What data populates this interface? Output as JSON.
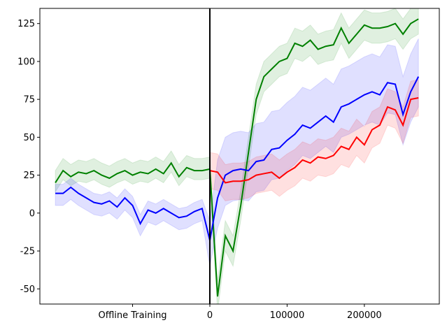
{
  "chart_data": {
    "type": "line",
    "xlim": [
      -220000,
      297000
    ],
    "ylim": [
      -60,
      135
    ],
    "xticks": [
      {
        "value": -100000,
        "label": "Offline Training"
      },
      0,
      100000,
      200000
    ],
    "yticks": [
      -50,
      -25,
      0,
      25,
      50,
      75,
      100,
      125
    ],
    "vline": 0,
    "vline_color": "#000000",
    "series": [
      {
        "color": "#008000",
        "x": [
          -200000,
          -190000,
          -180000,
          -170000,
          -160000,
          -150000,
          -140000,
          -130000,
          -120000,
          -110000,
          -100000,
          -90000,
          -80000,
          -70000,
          -60000,
          -50000,
          -40000,
          -30000,
          -20000,
          -10000,
          0,
          10000,
          20000,
          30000,
          40000,
          50000,
          60000,
          70000,
          80000,
          90000,
          100000,
          110000,
          120000,
          130000,
          140000,
          150000,
          160000,
          170000,
          180000,
          190000,
          200000,
          210000,
          220000,
          230000,
          240000,
          250000,
          260000,
          270000
        ],
        "values": [
          20,
          28,
          24,
          27,
          26,
          28,
          25,
          23,
          26,
          28,
          25,
          27,
          26,
          29,
          26,
          33,
          24,
          30,
          28,
          28,
          29,
          -55,
          -15,
          -25,
          5,
          40,
          75,
          90,
          95,
          100,
          102,
          112,
          110,
          114,
          108,
          110,
          111,
          122,
          112,
          118,
          124,
          122,
          122,
          123,
          125,
          118,
          125,
          128
        ],
        "lower": [
          14,
          22,
          18,
          21,
          20,
          22,
          19,
          17,
          20,
          22,
          19,
          21,
          20,
          23,
          20,
          27,
          18,
          24,
          22,
          22,
          23,
          -65,
          -25,
          -35,
          -5,
          30,
          65,
          80,
          85,
          90,
          92,
          102,
          100,
          104,
          98,
          100,
          101,
          112,
          102,
          108,
          114,
          112,
          112,
          113,
          115,
          108,
          115,
          118
        ],
        "upper": [
          28,
          36,
          32,
          35,
          34,
          36,
          33,
          31,
          34,
          36,
          33,
          35,
          34,
          37,
          34,
          41,
          32,
          38,
          36,
          36,
          37,
          -45,
          -5,
          -15,
          15,
          50,
          85,
          100,
          105,
          110,
          112,
          122,
          120,
          124,
          118,
          120,
          121,
          132,
          122,
          128,
          134,
          132,
          132,
          133,
          135,
          128,
          135,
          138
        ]
      },
      {
        "color": "#0000ff",
        "x": [
          -200000,
          -190000,
          -180000,
          -170000,
          -160000,
          -150000,
          -140000,
          -130000,
          -120000,
          -110000,
          -100000,
          -90000,
          -80000,
          -70000,
          -60000,
          -50000,
          -40000,
          -30000,
          -20000,
          -10000,
          0,
          10000,
          20000,
          30000,
          40000,
          50000,
          60000,
          70000,
          80000,
          90000,
          100000,
          110000,
          120000,
          130000,
          140000,
          150000,
          160000,
          170000,
          180000,
          190000,
          200000,
          210000,
          220000,
          230000,
          240000,
          250000,
          260000,
          270000
        ],
        "values": [
          13,
          13,
          17,
          13,
          10,
          7,
          6,
          8,
          4,
          10,
          5,
          -7,
          2,
          0,
          3,
          0,
          -3,
          -2,
          1,
          3,
          -18,
          10,
          25,
          28,
          29,
          28,
          34,
          35,
          42,
          43,
          48,
          52,
          58,
          56,
          60,
          64,
          60,
          70,
          72,
          75,
          78,
          80,
          78,
          86,
          85,
          65,
          80,
          90
        ],
        "lower": [
          5,
          5,
          9,
          5,
          2,
          -1,
          -2,
          0,
          -4,
          2,
          -3,
          -15,
          -6,
          -8,
          -5,
          -8,
          -11,
          -10,
          -7,
          -5,
          -35,
          -10,
          5,
          8,
          9,
          8,
          14,
          15,
          22,
          23,
          28,
          32,
          38,
          36,
          40,
          44,
          40,
          50,
          52,
          55,
          58,
          60,
          58,
          66,
          65,
          45,
          60,
          70
        ],
        "upper": [
          19,
          19,
          23,
          19,
          16,
          13,
          12,
          14,
          10,
          16,
          11,
          -1,
          8,
          6,
          9,
          6,
          3,
          4,
          7,
          9,
          -5,
          35,
          50,
          53,
          54,
          53,
          59,
          60,
          67,
          68,
          73,
          77,
          83,
          81,
          85,
          89,
          85,
          95,
          97,
          100,
          103,
          105,
          103,
          111,
          110,
          90,
          105,
          115
        ]
      },
      {
        "color": "#ff0000",
        "x": [
          0,
          10000,
          20000,
          30000,
          40000,
          50000,
          60000,
          70000,
          80000,
          90000,
          100000,
          110000,
          120000,
          130000,
          140000,
          150000,
          160000,
          170000,
          180000,
          190000,
          200000,
          210000,
          220000,
          230000,
          240000,
          250000,
          260000,
          270000
        ],
        "values": [
          28,
          27,
          20,
          21,
          21,
          22,
          25,
          26,
          27,
          23,
          27,
          30,
          35,
          33,
          37,
          36,
          38,
          44,
          42,
          50,
          45,
          55,
          58,
          70,
          68,
          58,
          75,
          76
        ],
        "lower": [
          16,
          15,
          8,
          9,
          9,
          10,
          13,
          14,
          15,
          11,
          15,
          18,
          23,
          21,
          25,
          24,
          26,
          32,
          30,
          38,
          33,
          43,
          46,
          58,
          56,
          46,
          63,
          64
        ],
        "upper": [
          40,
          39,
          32,
          33,
          33,
          34,
          37,
          38,
          39,
          35,
          39,
          42,
          47,
          45,
          49,
          48,
          50,
          56,
          54,
          62,
          57,
          67,
          70,
          82,
          80,
          70,
          87,
          88
        ]
      }
    ]
  }
}
